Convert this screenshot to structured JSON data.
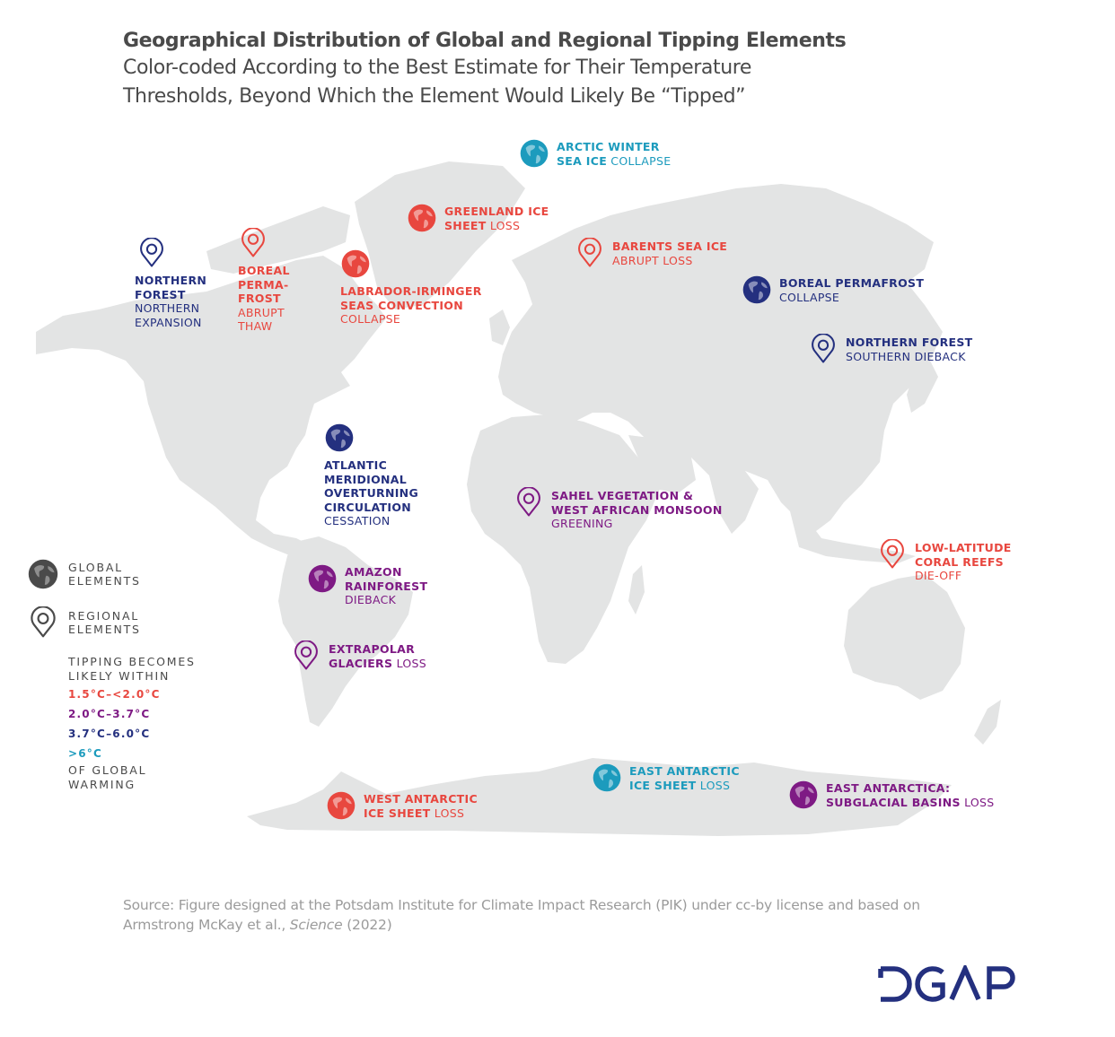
{
  "header": {
    "title": "Geographical Distribution of Global and Regional Tipping Elements",
    "subtitle_line1": "Color-coded According to the Best Estimate for Their Temperature",
    "subtitle_line2": "Thresholds, Beyond Which the Element Would Likely Be “Tipped”"
  },
  "colors": {
    "range_1_5_to_2_0": "#e8473f",
    "range_2_0_to_3_7": "#7e1a84",
    "range_3_7_to_6_0": "#24307f",
    "range_above_6": "#1c9bbd",
    "legend_neutral": "#4a4a4a",
    "land": "#e3e4e4",
    "logo": "#24307f",
    "source_text": "#9b9b9b"
  },
  "elements": [
    {
      "id": "arctic-winter-sea-ice",
      "type": "global",
      "color_key": "range_above_6",
      "bold": [
        "ARCTIC WINTER",
        "SEA ICE"
      ],
      "normal": "COLLAPSE",
      "inline_last": true
    },
    {
      "id": "greenland-ice-sheet",
      "type": "global",
      "color_key": "range_1_5_to_2_0",
      "bold": [
        "GREENLAND ICE",
        "SHEET"
      ],
      "normal": "LOSS",
      "inline_last": true
    },
    {
      "id": "labrador-irminger",
      "type": "global",
      "color_key": "range_1_5_to_2_0",
      "bold": [
        "LABRADOR-IRMINGER",
        "SEAS CONVECTION"
      ],
      "normal": "COLLAPSE",
      "inline_last": false
    },
    {
      "id": "northern-forest-expansion",
      "type": "regional",
      "color_key": "range_3_7_to_6_0",
      "bold": [
        "NORTHERN",
        "FOREST"
      ],
      "normal": "NORTHERN EXPANSION",
      "normal_lines": [
        "NORTHERN",
        "EXPANSION"
      ]
    },
    {
      "id": "boreal-permafrost-abrupt",
      "type": "regional",
      "color_key": "range_1_5_to_2_0",
      "bold": [
        "BOREAL",
        "PERMA-",
        "FROST"
      ],
      "normal": "ABRUPT THAW",
      "normal_lines": [
        "ABRUPT",
        "THAW"
      ]
    },
    {
      "id": "barents-sea-ice",
      "type": "regional",
      "color_key": "range_1_5_to_2_0",
      "bold": [
        "BARENTS SEA ICE"
      ],
      "normal": "ABRUPT LOSS",
      "inline_last": false
    },
    {
      "id": "boreal-permafrost-collapse",
      "type": "global",
      "color_key": "range_3_7_to_6_0",
      "bold": [
        "BOREAL PERMAFROST"
      ],
      "normal": "COLLAPSE",
      "inline_last": false
    },
    {
      "id": "northern-forest-dieback",
      "type": "regional",
      "color_key": "range_3_7_to_6_0",
      "bold": [
        "NORTHERN FOREST"
      ],
      "normal": "SOUTHERN DIEBACK",
      "inline_last": false
    },
    {
      "id": "amoc",
      "type": "global",
      "color_key": "range_3_7_to_6_0",
      "bold": [
        "ATLANTIC",
        "MERIDIONAL",
        "OVERTURNING",
        "CIRCULATION"
      ],
      "normal": "CESSATION",
      "inline_last": false
    },
    {
      "id": "sahel",
      "type": "regional",
      "color_key": "range_2_0_to_3_7",
      "bold": [
        "SAHEL VEGETATION &",
        "WEST AFRICAN MONSOON"
      ],
      "normal": "GREENING",
      "inline_last": false
    },
    {
      "id": "coral-reefs",
      "type": "regional",
      "color_key": "range_1_5_to_2_0",
      "bold": [
        "LOW-LATITUDE",
        "CORAL REEFS"
      ],
      "normal": "DIE-OFF",
      "inline_last": false
    },
    {
      "id": "amazon",
      "type": "global",
      "color_key": "range_2_0_to_3_7",
      "bold": [
        "AMAZON",
        "RAINFOREST"
      ],
      "normal": "DIEBACK",
      "inline_last": false
    },
    {
      "id": "extrapolar-glaciers",
      "type": "regional",
      "color_key": "range_2_0_to_3_7",
      "bold": [
        "EXTRAPOLAR",
        "GLACIERS"
      ],
      "normal": "LOSS",
      "inline_last": true
    },
    {
      "id": "east-antarctic-ice-sheet",
      "type": "global",
      "color_key": "range_above_6",
      "bold": [
        "EAST ANTARCTIC",
        "ICE SHEET"
      ],
      "normal": "LOSS",
      "inline_last": true
    },
    {
      "id": "west-antarctic-ice-sheet",
      "type": "global",
      "color_key": "range_1_5_to_2_0",
      "bold": [
        "WEST ANTARCTIC",
        "ICE SHEET"
      ],
      "normal": "LOSS",
      "inline_last": true
    },
    {
      "id": "east-antarctica-subglacial",
      "type": "global",
      "color_key": "range_2_0_to_3_7",
      "bold": [
        "EAST ANTARCTICA:",
        "SUBGLACIAL BASINS"
      ],
      "normal": "LOSS",
      "inline_last": true
    }
  ],
  "legend": {
    "global_line1": "GLOBAL",
    "global_line2": "ELEMENTS",
    "regional_line1": "REGIONAL",
    "regional_line2": "ELEMENTS",
    "header_line1": "TIPPING BECOMES",
    "header_line2": "LIKELY WITHIN",
    "ranges": [
      {
        "label": "1.5°C–<2.0°C",
        "color_key": "range_1_5_to_2_0"
      },
      {
        "label": "2.0°C–3.7°C",
        "color_key": "range_2_0_to_3_7"
      },
      {
        "label": "3.7°C–6.0°C",
        "color_key": "range_3_7_to_6_0"
      },
      {
        "label": ">6°C",
        "color_key": "range_above_6"
      }
    ],
    "footer_line1": "OF GLOBAL",
    "footer_line2": "WARMING"
  },
  "source": {
    "prefix": "Source: Figure designed at the Potsdam Institute for Climate Impact Research (PIK) under cc-by license and based on",
    "line2_a": "Armstrong McKay et al., ",
    "journal": "Science",
    "year": " (2022)"
  },
  "logo": {
    "text": "DGAP"
  }
}
